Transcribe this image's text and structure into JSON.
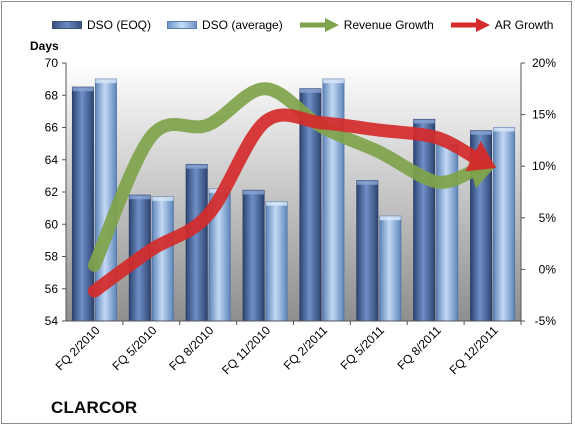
{
  "chart_data": {
    "type": "bar",
    "title": "CLARCOR",
    "ylabel": "Days",
    "ylim": [
      54,
      70
    ],
    "yticks": [
      "54",
      "56",
      "58",
      "60",
      "62",
      "64",
      "66",
      "68",
      "70"
    ],
    "y2lim": [
      -5,
      20
    ],
    "y2ticks": [
      "-5%",
      "0%",
      "5%",
      "10%",
      "15%",
      "20%"
    ],
    "categories": [
      "FQ 2/2010",
      "FQ 5/2010",
      "FQ 8/2010",
      "FQ 11/2010",
      "FQ 2/2011",
      "FQ 5/2011",
      "FQ 8/2011",
      "FQ 12/2011"
    ],
    "series": [
      {
        "name": "DSO (EOQ)",
        "kind": "bar",
        "axis": "left",
        "color": "#4f6fa6",
        "values": [
          68.5,
          61.8,
          63.7,
          62.1,
          68.4,
          62.7,
          66.5,
          65.8
        ]
      },
      {
        "name": "DSO (average)",
        "kind": "bar",
        "axis": "left",
        "color": "#8fb4e3",
        "values": [
          69.0,
          61.7,
          62.2,
          61.4,
          69.0,
          60.5,
          65.2,
          66.0
        ]
      },
      {
        "name": "Revenue Growth",
        "kind": "arrow",
        "axis": "right",
        "color": "#7fa34a",
        "values": [
          0.4,
          12.9,
          14.0,
          17.5,
          13.8,
          11.4,
          8.5,
          10.0
        ]
      },
      {
        "name": "AR Growth",
        "kind": "arrow",
        "axis": "right",
        "color": "#d42a2a",
        "values": [
          -2.1,
          1.9,
          5.3,
          14.3,
          14.2,
          13.5,
          12.8,
          10.0
        ]
      }
    ],
    "grid": false,
    "legend": "top"
  }
}
